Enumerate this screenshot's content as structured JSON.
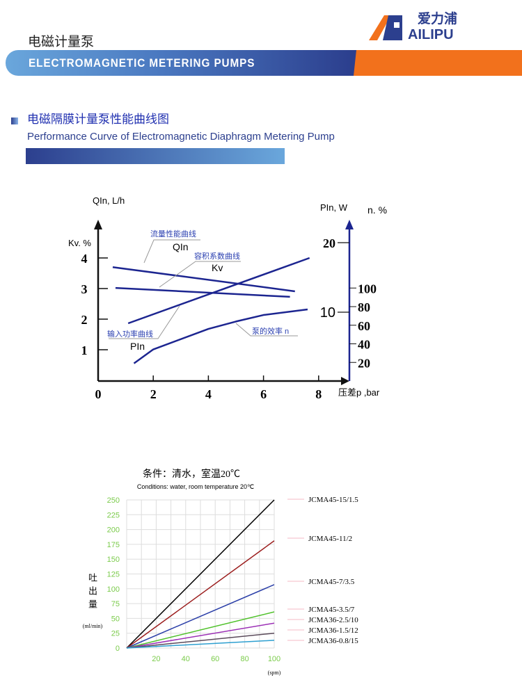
{
  "header": {
    "title_cn": "电磁计量泵",
    "banner": "ELECTROMAGNETIC METERING PUMPS",
    "logo_cn": "爱力浦",
    "logo_en": "AILIPU",
    "colors": {
      "blue": "#2c3f8e",
      "orange": "#f2711c"
    }
  },
  "section": {
    "title_cn": "电磁隔膜计量泵性能曲线图",
    "title_en": "Performance Curve of Electromagnetic Diaphragm Metering Pump"
  },
  "chart_data": [
    {
      "type": "line",
      "xlabel": "压差p ,bar",
      "ylabel_left_top": "QIn, L/h",
      "ylabel_left": "Kv. %",
      "ylabel_right_w": "PIn, W",
      "ylabel_right_pct": "n. %",
      "x_ticks": [
        "0",
        "2",
        "4",
        "6",
        "8"
      ],
      "y_left_ticks": [
        "1",
        "2",
        "3",
        "4"
      ],
      "y_right_w_ticks": [
        "10",
        "20"
      ],
      "y_right_pct_ticks": [
        "20",
        "40",
        "60",
        "80",
        "100"
      ],
      "series": [
        {
          "name": "流量性能曲线",
          "symbol": "QIn",
          "axis": "left",
          "points": [
            [
              0.53,
              3.7
            ],
            [
              7.14,
              2.91
            ]
          ]
        },
        {
          "name": "容积系数曲线",
          "symbol": "Kv",
          "axis": "left",
          "points": [
            [
              0.63,
              3.02
            ],
            [
              6.96,
              2.73
            ]
          ]
        },
        {
          "name": "输入功率曲线",
          "symbol": "PIn",
          "axis": "right_w",
          "points": [
            [
              1.09,
              8.4
            ],
            [
              7.67,
              17.8
            ]
          ]
        },
        {
          "name": "泵的效率 n",
          "axis": "right_pct",
          "points": [
            [
              1.3,
              19
            ],
            [
              2,
              34
            ],
            [
              4,
              56
            ],
            [
              5,
              64
            ],
            [
              6,
              71
            ],
            [
              7.6,
              77
            ]
          ]
        }
      ]
    },
    {
      "type": "line",
      "title": "条件：清水，室温20℃",
      "subtitle": "Conditions: water, room temperature 20℃",
      "ylabel": "吐出量",
      "yunit": "(ml/min)",
      "xunit": "(spm)",
      "xlim": [
        0,
        100
      ],
      "ylim": [
        0,
        250
      ],
      "x_ticks": [
        "20",
        "40",
        "60",
        "80",
        "100"
      ],
      "y_ticks": [
        "0",
        "25",
        "50",
        "75",
        "100",
        "125",
        "150",
        "175",
        "200",
        "225",
        "250"
      ],
      "grid": true,
      "series": [
        {
          "name": "JCMA45-15/1.5",
          "color": "#000000",
          "values": [
            [
              0,
              0
            ],
            [
              100,
              250
            ]
          ]
        },
        {
          "name": "JCMA45-11/2",
          "color": "#9b1c1c",
          "values": [
            [
              0,
              0
            ],
            [
              100,
              181
            ]
          ]
        },
        {
          "name": "JCMA45-7/3.5",
          "color": "#2b3fa8",
          "values": [
            [
              0,
              0
            ],
            [
              100,
              107
            ]
          ]
        },
        {
          "name": "JCMA45-3.5/7",
          "color": "#4fc12a",
          "values": [
            [
              0,
              0
            ],
            [
              100,
              61
            ]
          ]
        },
        {
          "name": "JCMA36-2.5/10",
          "color": "#9b2fb5",
          "values": [
            [
              0,
              0
            ],
            [
              100,
              42
            ]
          ]
        },
        {
          "name": "JCMA36-1.5/12",
          "color": "#5a4a5a",
          "values": [
            [
              0,
              0
            ],
            [
              100,
              25
            ]
          ]
        },
        {
          "name": "JCMA36-0.8/15",
          "color": "#2d9fd0",
          "values": [
            [
              0,
              0
            ],
            [
              100,
              13
            ]
          ]
        }
      ]
    }
  ]
}
